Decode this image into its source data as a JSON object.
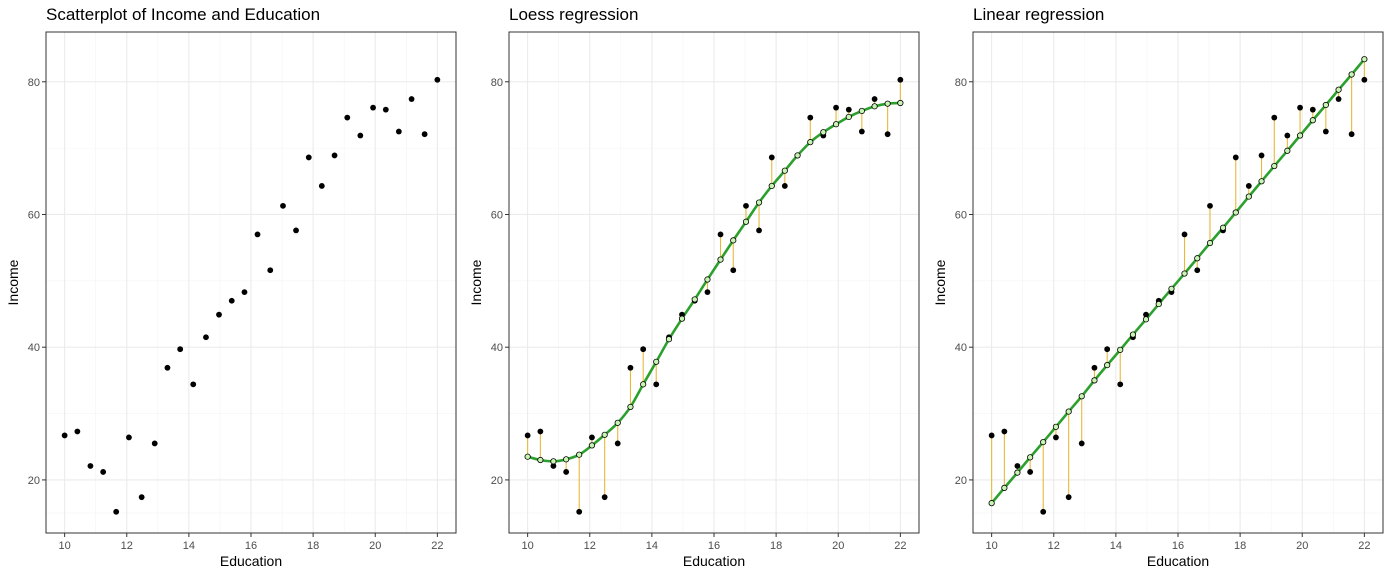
{
  "colors": {
    "point": "#000000",
    "fit_line": "#2ca02c",
    "residual": "#e6b93c",
    "fitted_point_fill": "#c9f5b4",
    "grid_major": "#ebebeb",
    "grid_minor": "#f4f4f4",
    "panel_border": "#333333",
    "tick_text": "#4d4d4d"
  },
  "chart_data": [
    {
      "type": "scatter",
      "title": "Scatterplot of Income and Education",
      "xlabel": "Education",
      "ylabel": "Income",
      "xlim": [
        9.4,
        22.6
      ],
      "ylim": [
        12,
        87.5
      ],
      "xticks": [
        "10",
        "12",
        "14",
        "16",
        "18",
        "20",
        "22"
      ],
      "yticks": [
        "20",
        "40",
        "60",
        "80"
      ],
      "grid": true,
      "series": [
        {
          "x": [
            10.0,
            10.41,
            10.83,
            11.24,
            11.66,
            12.07,
            12.48,
            12.9,
            13.31,
            13.72,
            14.14,
            14.55,
            14.97,
            15.38,
            15.79,
            16.21,
            16.62,
            17.03,
            17.45,
            17.86,
            18.28,
            18.69,
            19.1,
            19.52,
            19.93,
            20.34,
            20.76,
            21.17,
            21.59,
            22.0
          ],
          "y": [
            26.7,
            27.3,
            22.1,
            21.2,
            15.2,
            26.4,
            17.4,
            25.5,
            36.9,
            39.7,
            34.4,
            41.5,
            44.9,
            47.0,
            48.3,
            57.0,
            51.6,
            61.3,
            57.6,
            68.6,
            64.3,
            68.9,
            74.6,
            71.9,
            76.1,
            75.8,
            72.5,
            77.4,
            72.1,
            80.3
          ]
        }
      ]
    },
    {
      "type": "scatter",
      "title": "Loess regression",
      "xlabel": "Education",
      "ylabel": "Income",
      "xlim": [
        9.4,
        22.6
      ],
      "ylim": [
        12,
        87.5
      ],
      "xticks": [
        "10",
        "12",
        "14",
        "16",
        "18",
        "20",
        "22"
      ],
      "yticks": [
        "20",
        "40",
        "60",
        "80"
      ],
      "grid": true,
      "series": [
        {
          "x": [
            10.0,
            10.41,
            10.83,
            11.24,
            11.66,
            12.07,
            12.48,
            12.9,
            13.31,
            13.72,
            14.14,
            14.55,
            14.97,
            15.38,
            15.79,
            16.21,
            16.62,
            17.03,
            17.45,
            17.86,
            18.28,
            18.69,
            19.1,
            19.52,
            19.93,
            20.34,
            20.76,
            21.17,
            21.59,
            22.0
          ],
          "y": [
            26.7,
            27.3,
            22.1,
            21.2,
            15.2,
            26.4,
            17.4,
            25.5,
            36.9,
            39.7,
            34.4,
            41.5,
            44.9,
            47.0,
            48.3,
            57.0,
            51.6,
            61.3,
            57.6,
            68.6,
            64.3,
            68.9,
            74.6,
            71.9,
            76.1,
            75.8,
            72.5,
            77.4,
            72.1,
            80.3
          ]
        },
        {
          "x": [
            10.0,
            10.41,
            10.83,
            11.24,
            11.66,
            12.07,
            12.48,
            12.9,
            13.31,
            13.72,
            14.14,
            14.55,
            14.97,
            15.38,
            15.79,
            16.21,
            16.62,
            17.03,
            17.45,
            17.86,
            18.28,
            18.69,
            19.1,
            19.52,
            19.93,
            20.34,
            20.76,
            21.17,
            21.59,
            22.0
          ],
          "y": [
            23.5,
            23.0,
            22.8,
            23.1,
            23.8,
            25.2,
            26.8,
            28.6,
            31.0,
            34.4,
            37.8,
            41.2,
            44.3,
            47.2,
            50.2,
            53.2,
            56.1,
            58.9,
            61.8,
            64.3,
            66.6,
            68.9,
            70.9,
            72.4,
            73.6,
            74.7,
            75.6,
            76.3,
            76.7,
            76.8
          ]
        }
      ]
    },
    {
      "type": "scatter",
      "title": "Linear regression",
      "xlabel": "Education",
      "ylabel": "Income",
      "xlim": [
        9.4,
        22.6
      ],
      "ylim": [
        12,
        87.5
      ],
      "xticks": [
        "10",
        "12",
        "14",
        "16",
        "18",
        "20",
        "22"
      ],
      "yticks": [
        "20",
        "40",
        "60",
        "80"
      ],
      "grid": true,
      "series": [
        {
          "x": [
            10.0,
            10.41,
            10.83,
            11.24,
            11.66,
            12.07,
            12.48,
            12.9,
            13.31,
            13.72,
            14.14,
            14.55,
            14.97,
            15.38,
            15.79,
            16.21,
            16.62,
            17.03,
            17.45,
            17.86,
            18.28,
            18.69,
            19.1,
            19.52,
            19.93,
            20.34,
            20.76,
            21.17,
            21.59,
            22.0
          ],
          "y": [
            26.7,
            27.3,
            22.1,
            21.2,
            15.2,
            26.4,
            17.4,
            25.5,
            36.9,
            39.7,
            34.4,
            41.5,
            44.9,
            47.0,
            48.3,
            57.0,
            51.6,
            61.3,
            57.6,
            68.6,
            64.3,
            68.9,
            74.6,
            71.9,
            76.1,
            75.8,
            72.5,
            77.4,
            72.1,
            80.3
          ]
        },
        {
          "x": [
            10.0,
            10.41,
            10.83,
            11.24,
            11.66,
            12.07,
            12.48,
            12.9,
            13.31,
            13.72,
            14.14,
            14.55,
            14.97,
            15.38,
            15.79,
            16.21,
            16.62,
            17.03,
            17.45,
            17.86,
            18.28,
            18.69,
            19.1,
            19.52,
            19.93,
            20.34,
            20.76,
            21.17,
            21.59,
            22.0
          ],
          "y": [
            16.5,
            18.8,
            21.1,
            23.4,
            25.7,
            28.0,
            30.3,
            32.6,
            35.0,
            37.3,
            39.6,
            41.9,
            44.2,
            46.5,
            48.8,
            51.1,
            53.4,
            55.7,
            58.0,
            60.3,
            62.7,
            65.0,
            67.3,
            69.6,
            71.9,
            74.2,
            76.5,
            78.8,
            81.1,
            83.4
          ]
        }
      ]
    }
  ]
}
